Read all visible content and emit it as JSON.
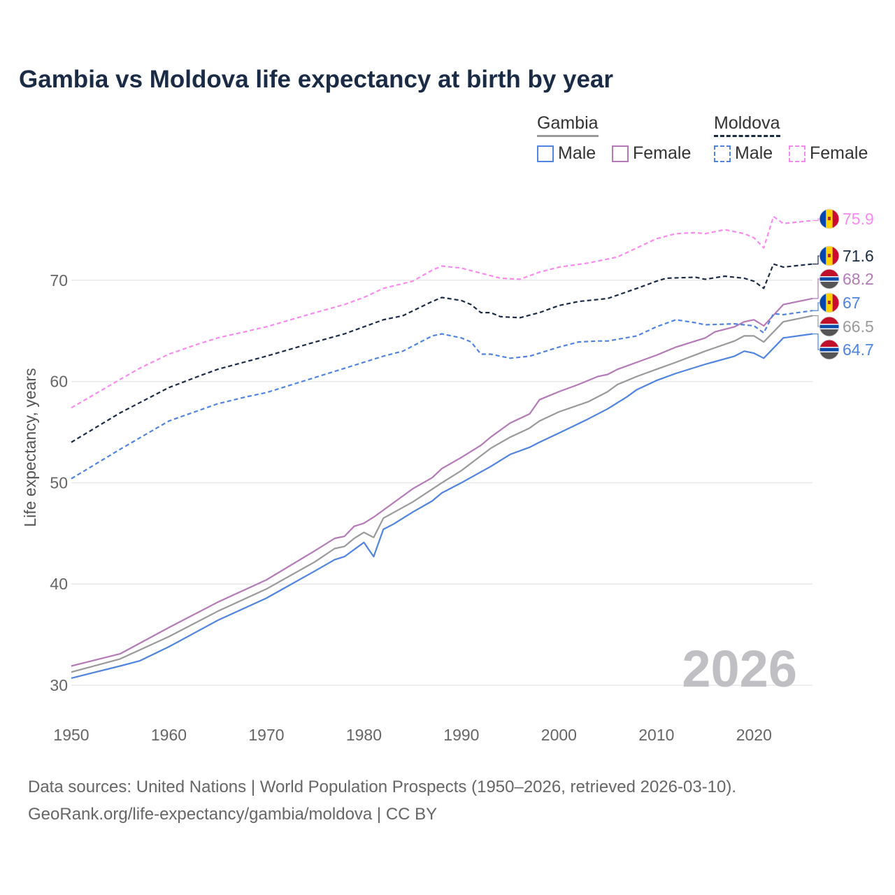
{
  "title": "Gambia vs Moldova life expectancy at birth by year",
  "legend": {
    "groups": [
      {
        "name": "Gambia",
        "items": [
          {
            "label": "Male",
            "color": "#4f84e0",
            "style": "solid"
          },
          {
            "label": "Female",
            "color": "#b57ab8",
            "style": "solid"
          }
        ]
      },
      {
        "name": "Moldova",
        "items": [
          {
            "label": "Male",
            "color": "#4f84e0",
            "style": "dashed"
          },
          {
            "label": "Female",
            "color": "#fb8af0",
            "style": "dashed"
          }
        ]
      }
    ]
  },
  "watermark_year": "2026",
  "source_lines": [
    "Data sources: United Nations | World Population Prospects (1950–2026, retrieved 2026-03-10).",
    "GeoRank.org/life-expectancy/gambia/moldova | CC BY"
  ],
  "chart_data": {
    "type": "line",
    "title": "Gambia vs Moldova life expectancy at birth by year",
    "xlabel": "",
    "ylabel": "Life expectancy, years",
    "xlim": [
      1950,
      2026
    ],
    "ylim": [
      28.5,
      78
    ],
    "xticks": [
      1950,
      1960,
      1970,
      1980,
      1990,
      2000,
      2010,
      2020
    ],
    "yticks": [
      30,
      40,
      50,
      60,
      70
    ],
    "grid": "horizontal",
    "legend_position": "top-right",
    "series": [
      {
        "name": "Moldova Female",
        "country": "Moldova",
        "flag": "moldova",
        "color": "#fb8af0",
        "dash": true,
        "end_label": "75.9",
        "x": [
          1950,
          1955,
          1957,
          1960,
          1963,
          1965,
          1970,
          1975,
          1978,
          1980,
          1982,
          1985,
          1987,
          1988,
          1990,
          1992,
          1994,
          1996,
          1998,
          2000,
          2003,
          2006,
          2008,
          2010,
          2012,
          2014,
          2015,
          2017,
          2019,
          2020,
          2021,
          2022,
          2023,
          2026
        ],
        "y": [
          57.4,
          60.2,
          61.3,
          62.7,
          63.7,
          64.3,
          65.4,
          66.8,
          67.6,
          68.3,
          69.2,
          69.9,
          71.0,
          71.4,
          71.2,
          70.7,
          70.2,
          70.1,
          70.8,
          71.3,
          71.7,
          72.3,
          73.2,
          74.1,
          74.6,
          74.7,
          74.6,
          75.0,
          74.6,
          74.2,
          73.2,
          76.3,
          75.6,
          75.9
        ]
      },
      {
        "name": "Moldova",
        "country": "Moldova",
        "flag": "moldova",
        "color": "#1a2b45",
        "dash": true,
        "end_label": "71.6",
        "x": [
          1950,
          1955,
          1960,
          1963,
          1965,
          1970,
          1975,
          1978,
          1980,
          1982,
          1984,
          1987,
          1988,
          1990,
          1991,
          1992,
          1993,
          1994,
          1996,
          1998,
          2000,
          2002,
          2005,
          2008,
          2010,
          2011,
          2014,
          2015,
          2017,
          2018,
          2019,
          2020,
          2021,
          2022,
          2023,
          2026
        ],
        "y": [
          54.0,
          56.9,
          59.4,
          60.5,
          61.2,
          62.5,
          63.9,
          64.7,
          65.4,
          66.1,
          66.5,
          67.9,
          68.3,
          68.0,
          67.6,
          66.8,
          66.8,
          66.4,
          66.3,
          66.8,
          67.5,
          67.9,
          68.2,
          69.2,
          69.9,
          70.2,
          70.3,
          70.1,
          70.4,
          70.3,
          70.2,
          69.9,
          69.2,
          71.6,
          71.3,
          71.6
        ]
      },
      {
        "name": "Gambia Female",
        "country": "Gambia",
        "flag": "gambia",
        "color": "#b57ab8",
        "dash": false,
        "end_label": "68.2",
        "x": [
          1950,
          1955,
          1960,
          1965,
          1970,
          1975,
          1977,
          1978,
          1979,
          1980,
          1981,
          1983,
          1985,
          1987,
          1988,
          1990,
          1992,
          1993,
          1995,
          1997,
          1998,
          2000,
          2002,
          2004,
          2005,
          2006,
          2008,
          2010,
          2012,
          2015,
          2016,
          2018,
          2019,
          2020,
          2021,
          2023,
          2026
        ],
        "y": [
          31.9,
          33.1,
          35.7,
          38.2,
          40.4,
          43.3,
          44.5,
          44.7,
          45.7,
          46.0,
          46.6,
          48.0,
          49.4,
          50.5,
          51.4,
          52.5,
          53.7,
          54.5,
          55.9,
          56.8,
          58.2,
          59.0,
          59.7,
          60.5,
          60.7,
          61.2,
          61.9,
          62.6,
          63.4,
          64.3,
          64.9,
          65.4,
          65.9,
          66.1,
          65.5,
          67.6,
          68.2
        ]
      },
      {
        "name": "Moldova Male",
        "country": "Moldova",
        "flag": "moldova",
        "color": "#4f84e0",
        "dash": true,
        "end_label": "67",
        "x": [
          1950,
          1955,
          1960,
          1965,
          1968,
          1970,
          1972,
          1975,
          1978,
          1980,
          1982,
          1984,
          1986,
          1987,
          1988,
          1990,
          1991,
          1992,
          1993,
          1995,
          1997,
          1998,
          2000,
          2002,
          2004,
          2005,
          2008,
          2010,
          2012,
          2014,
          2015,
          2018,
          2020,
          2021,
          2022,
          2023,
          2026
        ],
        "y": [
          50.4,
          53.3,
          56.1,
          57.8,
          58.5,
          58.9,
          59.5,
          60.4,
          61.3,
          61.9,
          62.5,
          63.0,
          64.0,
          64.5,
          64.7,
          64.3,
          63.9,
          62.7,
          62.7,
          62.3,
          62.5,
          62.8,
          63.4,
          63.9,
          64.0,
          64.0,
          64.5,
          65.4,
          66.1,
          65.8,
          65.6,
          65.7,
          65.5,
          64.8,
          66.7,
          66.6,
          67.0
        ]
      },
      {
        "name": "Gambia",
        "country": "Gambia",
        "flag": "gambia",
        "color": "#9a9a9a",
        "dash": false,
        "end_label": "66.5",
        "x": [
          1950,
          1955,
          1960,
          1965,
          1970,
          1975,
          1977,
          1978,
          1979,
          1980,
          1981,
          1982,
          1985,
          1988,
          1990,
          1993,
          1995,
          1997,
          1998,
          2000,
          2003,
          2005,
          2006,
          2008,
          2010,
          2012,
          2015,
          2018,
          2019,
          2020,
          2021,
          2023,
          2026
        ],
        "y": [
          31.3,
          32.6,
          34.8,
          37.3,
          39.5,
          42.2,
          43.5,
          43.7,
          44.5,
          45.1,
          44.6,
          46.5,
          48.1,
          50.0,
          51.2,
          53.4,
          54.5,
          55.4,
          56.1,
          57.0,
          58.0,
          59.0,
          59.7,
          60.5,
          61.2,
          61.9,
          63.0,
          64.0,
          64.5,
          64.5,
          63.9,
          65.9,
          66.5
        ]
      },
      {
        "name": "Gambia Male",
        "country": "Gambia",
        "flag": "gambia",
        "color": "#4f84e0",
        "dash": false,
        "end_label": "64.7",
        "x": [
          1950,
          1955,
          1957,
          1960,
          1965,
          1970,
          1975,
          1977,
          1978,
          1979,
          1980,
          1981,
          1982,
          1983,
          1985,
          1987,
          1988,
          1990,
          1993,
          1995,
          1997,
          1998,
          2000,
          2003,
          2005,
          2007,
          2008,
          2010,
          2012,
          2015,
          2018,
          2019,
          2020,
          2021,
          2023,
          2026
        ],
        "y": [
          30.7,
          31.9,
          32.4,
          33.8,
          36.4,
          38.6,
          41.3,
          42.4,
          42.7,
          43.4,
          44.1,
          42.7,
          45.4,
          45.9,
          47.1,
          48.2,
          49.0,
          50.0,
          51.6,
          52.8,
          53.5,
          54.0,
          54.9,
          56.3,
          57.3,
          58.5,
          59.2,
          60.1,
          60.8,
          61.7,
          62.5,
          63.0,
          62.8,
          62.3,
          64.3,
          64.7
        ]
      }
    ]
  }
}
